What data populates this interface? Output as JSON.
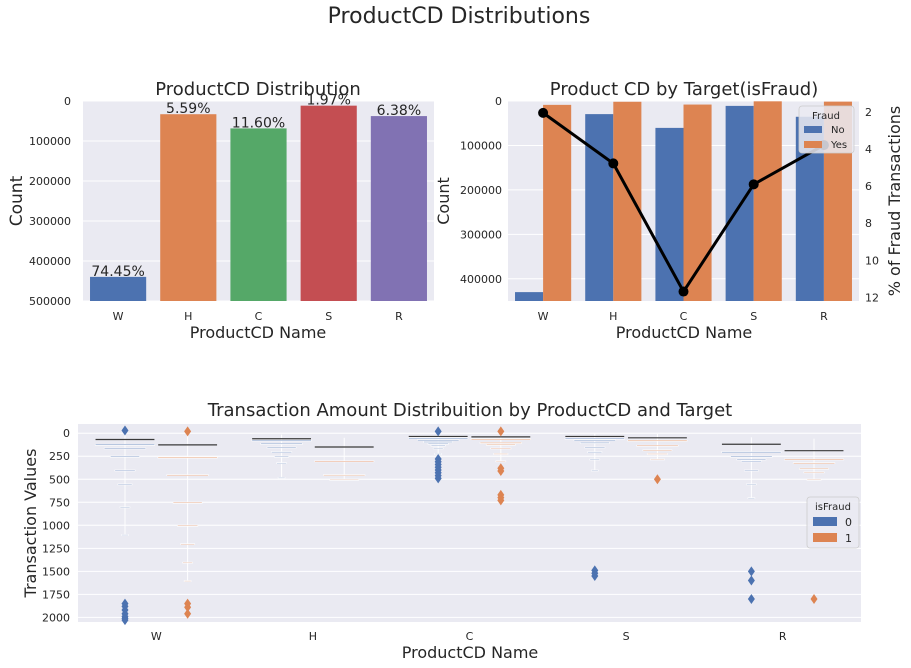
{
  "suptitle": "ProductCD Distributions",
  "colors": {
    "panel_bg": "#eaeaf2",
    "grid": "#ffffff",
    "text": "#262626",
    "blue": "#4c72b0",
    "orange": "#dd8452",
    "green": "#55a868",
    "red": "#c44e52",
    "purple": "#8172b3",
    "line": "#000000"
  },
  "chart_data": [
    {
      "type": "bar",
      "title": "ProductCD Distribution",
      "xlabel": "ProductCD Name",
      "ylabel": "Count",
      "categories": [
        "W",
        "H",
        "C",
        "S",
        "R"
      ],
      "values": [
        439670,
        33024,
        68519,
        11628,
        37699
      ],
      "bar_labels": [
        "74.45%",
        "5.59%",
        "11.60%",
        "1.97%",
        "6.38%"
      ],
      "ylim": [
        0,
        500000
      ],
      "yticks": [
        "0",
        "100000",
        "200000",
        "300000",
        "400000",
        "500000"
      ],
      "bar_colors": [
        "blue",
        "orange",
        "green",
        "red",
        "purple"
      ],
      "grid": true
    },
    {
      "type": "bar",
      "title": "Product CD by Target(isFraud)",
      "xlabel": "ProductCD Name",
      "ylabel": "Count",
      "categories": [
        "W",
        "H",
        "C",
        "S",
        "R"
      ],
      "legend_title": "Fraud",
      "legend_position": "top-right",
      "series": [
        {
          "name": "No",
          "color": "blue",
          "values": [
            430000,
            29500,
            60500,
            11000,
            35500
          ]
        },
        {
          "name": "Yes",
          "color": "orange",
          "values": [
            8700,
            1700,
            8000,
            700,
            1400
          ]
        }
      ],
      "ylim": [
        0,
        450000
      ],
      "yticks": [
        "0",
        "100000",
        "200000",
        "300000",
        "400000"
      ],
      "secondary_axis": {
        "type": "line",
        "ylabel": "% of Fraud Transactions",
        "values": [
          2.04,
          4.77,
          11.69,
          5.9,
          3.78
        ],
        "ylim": [
          1.4,
          12.2
        ],
        "yticks": [
          "2",
          "4",
          "6",
          "8",
          "10",
          "12"
        ]
      },
      "grid": true
    },
    {
      "type": "boxen",
      "title": "Transaction Amount Distribuition by ProductCD and Target",
      "xlabel": "ProductCD Name",
      "ylabel": "Transaction Values",
      "categories": [
        "W",
        "H",
        "C",
        "S",
        "R"
      ],
      "legend_title": "isFraud",
      "legend_position": "right",
      "ylim": [
        -100,
        2050
      ],
      "yticks": [
        "0",
        "250",
        "500",
        "750",
        "1000",
        "1250",
        "1500",
        "1750",
        "2000"
      ],
      "series": [
        {
          "name": "0",
          "color": "blue",
          "groups": [
            {
              "median": 68,
              "boxes": [
                [
                  40,
                  120
                ],
                [
                  30,
                  160
                ],
                [
                  20,
                  250
                ],
                [
                  15,
                  400
                ],
                [
                  10,
                  550
                ],
                [
                  5,
                  800
                ],
                [
                  3,
                  1100
                ]
              ],
              "outliers": [
                1850,
                1880,
                1920,
                1960,
                1990,
                2010,
                2030,
                -30
              ]
            },
            {
              "median": 60,
              "boxes": [
                [
                  45,
                  75
                ],
                [
                  40,
                  110
                ],
                [
                  35,
                  150
                ],
                [
                  30,
                  200
                ],
                [
                  25,
                  250
                ],
                [
                  20,
                  320
                ],
                [
                  15,
                  480
                ]
              ],
              "outliers": []
            },
            {
              "median": 35,
              "boxes": [
                [
                  28,
                  50
                ],
                [
                  24,
                  70
                ],
                [
                  20,
                  90
                ],
                [
                  18,
                  110
                ],
                [
                  15,
                  130
                ],
                [
                  12,
                  160
                ],
                [
                  10,
                  220
                ]
              ],
              "outliers": [
                280,
                310,
                340,
                370,
                400,
                430,
                460,
                490,
                -20
              ]
            },
            {
              "median": 35,
              "boxes": [
                [
                  25,
                  55
                ],
                [
                  20,
                  70
                ],
                [
                  15,
                  100
                ],
                [
                  12,
                  150
                ],
                [
                  10,
                  200
                ],
                [
                  8,
                  280
                ],
                [
                  5,
                  400
                ]
              ],
              "outliers": [
                1490,
                1520,
                1550
              ]
            },
            {
              "median": 120,
              "boxes": [
                [
                  100,
                  200
                ],
                [
                  80,
                  250
                ],
                [
                  70,
                  280
                ],
                [
                  60,
                  300
                ],
                [
                  55,
                  400
                ],
                [
                  50,
                  550
                ],
                [
                  45,
                  700
                ]
              ],
              "outliers": [
                1500,
                1600,
                1800
              ]
            }
          ]
        },
        {
          "name": "1",
          "color": "orange",
          "groups": [
            {
              "median": 127,
              "boxes": [
                [
                  60,
                  260
                ],
                [
                  45,
                  450
                ],
                [
                  30,
                  750
                ],
                [
                  20,
                  1000
                ],
                [
                  15,
                  1200
                ],
                [
                  10,
                  1400
                ],
                [
                  5,
                  1600
                ]
              ],
              "outliers": [
                1850,
                1890,
                1960,
                -20
              ]
            },
            {
              "median": 150,
              "boxes": [
                [
                  90,
                  300
                ],
                [
                  70,
                  450
                ],
                [
                  50,
                  500
                ]
              ],
              "outliers": []
            },
            {
              "median": 40,
              "boxes": [
                [
                  25,
                  60
                ],
                [
                  20,
                  100
                ],
                [
                  15,
                  120
                ],
                [
                  12,
                  160
                ],
                [
                  10,
                  220
                ],
                [
                  8,
                  300
                ]
              ],
              "outliers": [
                380,
                410,
                670,
                700,
                730,
                -20
              ]
            },
            {
              "median": 50,
              "boxes": [
                [
                  25,
                  75
                ],
                [
                  20,
                  130
                ],
                [
                  15,
                  180
                ],
                [
                  10,
                  220
                ],
                [
                  8,
                  280
                ]
              ],
              "outliers": [
                500
              ]
            },
            {
              "median": 190,
              "boxes": [
                [
                  120,
                  280
                ],
                [
                  100,
                  320
                ],
                [
                  90,
                  380
                ],
                [
                  80,
                  420
                ],
                [
                  60,
                  500
                ]
              ],
              "outliers": [
                1800
              ]
            }
          ]
        }
      ],
      "grid": true
    }
  ]
}
